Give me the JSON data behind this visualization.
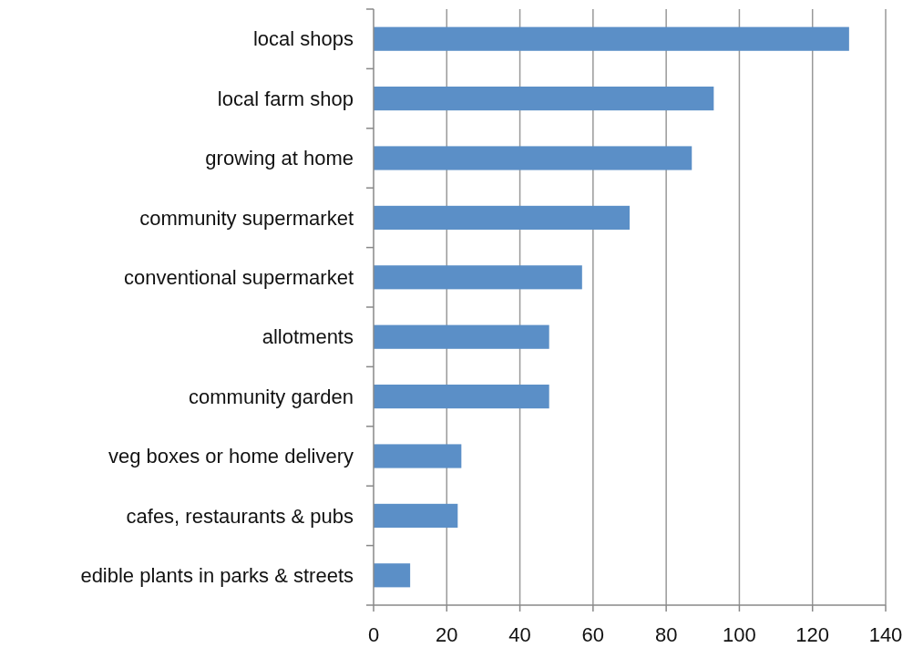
{
  "chart_data": {
    "type": "bar",
    "orientation": "horizontal",
    "categories": [
      "local shops",
      "local farm shop",
      "growing at home",
      "community supermarket",
      "conventional supermarket",
      "allotments",
      "community garden",
      "veg boxes or home delivery",
      "cafes, restaurants & pubs",
      "edible plants in parks & streets"
    ],
    "values": [
      130,
      93,
      87,
      70,
      57,
      48,
      48,
      24,
      23,
      10
    ],
    "color": "#5b8fc7",
    "xlim": [
      0,
      140
    ],
    "xticks": [
      0,
      20,
      40,
      60,
      80,
      100,
      120,
      140
    ],
    "grid": "x"
  }
}
